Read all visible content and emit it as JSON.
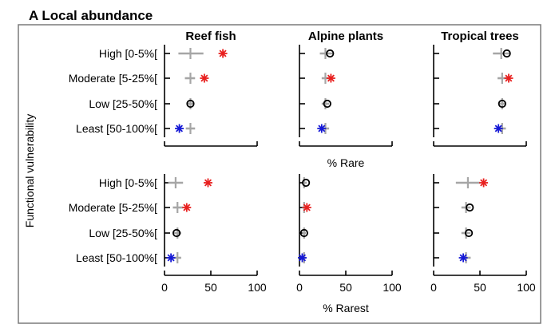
{
  "panel_title": "A Local abundance",
  "y_axis_title": "Functional vulnerability",
  "colors": {
    "frame": "#7a7a7a",
    "axis": "#000000",
    "whisker": "#a6a6a6",
    "high_marker": "#e8201f",
    "low_marker": "#1518d6",
    "neutral_marker": "#000000"
  },
  "chart_data": [
    {
      "type": "scatter",
      "row": "% Rare",
      "xlabel": "% Rare",
      "xlim": [
        0,
        100
      ],
      "xticks": [],
      "categories": [
        "High [0-5%[",
        "Moderate [5-25%[",
        "Low [25-50%[",
        "Least [50-100%["
      ],
      "panels": [
        {
          "title": "Reef fish",
          "points": [
            {
              "category": "High [0-5%[",
              "observed": 63,
              "null_mean": 28,
              "null_low": 15,
              "null_high": 42,
              "marker": "red-asterisk"
            },
            {
              "category": "Moderate [5-25%[",
              "observed": 43,
              "null_mean": 28,
              "null_low": 22,
              "null_high": 33,
              "marker": "red-asterisk"
            },
            {
              "category": "Low [25-50%[",
              "observed": 28,
              "null_mean": 28,
              "null_low": 24,
              "null_high": 31,
              "marker": "black-circle"
            },
            {
              "category": "Least [50-100%[",
              "observed": 16,
              "null_mean": 28,
              "null_low": 23,
              "null_high": 33,
              "marker": "blue-asterisk"
            }
          ]
        },
        {
          "title": "Alpine plants",
          "points": [
            {
              "category": "High [0-5%[",
              "observed": 33,
              "null_mean": 28,
              "null_low": 22,
              "null_high": 36,
              "marker": "black-circle"
            },
            {
              "category": "Moderate [5-25%[",
              "observed": 34,
              "null_mean": 28,
              "null_low": 24,
              "null_high": 32,
              "marker": "red-asterisk"
            },
            {
              "category": "Low [25-50%[",
              "observed": 30,
              "null_mean": 28,
              "null_low": 24,
              "null_high": 32,
              "marker": "black-circle"
            },
            {
              "category": "Least [50-100%[",
              "observed": 24,
              "null_mean": 28,
              "null_low": 24,
              "null_high": 32,
              "marker": "blue-asterisk"
            }
          ]
        },
        {
          "title": "Tropical trees",
          "points": [
            {
              "category": "High [0-5%[",
              "observed": 79,
              "null_mean": 73,
              "null_low": 64,
              "null_high": 82,
              "marker": "black-circle"
            },
            {
              "category": "Moderate [5-25%[",
              "observed": 81,
              "null_mean": 74,
              "null_low": 69,
              "null_high": 79,
              "marker": "red-asterisk"
            },
            {
              "category": "Low [25-50%[",
              "observed": 74,
              "null_mean": 74,
              "null_low": 71,
              "null_high": 77,
              "marker": "black-circle"
            },
            {
              "category": "Least [50-100%[",
              "observed": 70,
              "null_mean": 74,
              "null_low": 70,
              "null_high": 78,
              "marker": "blue-asterisk"
            }
          ]
        }
      ]
    },
    {
      "type": "scatter",
      "row": "% Rarest",
      "xlabel": "% Rarest",
      "xlim": [
        0,
        100
      ],
      "xticks": [
        0,
        50,
        100
      ],
      "categories": [
        "High [0-5%[",
        "Moderate [5-25%[",
        "Low [25-50%[",
        "Least [50-100%["
      ],
      "panels": [
        {
          "title": "",
          "points": [
            {
              "category": "High [0-5%[",
              "observed": 47,
              "null_mean": 12,
              "null_low": 4,
              "null_high": 20,
              "marker": "red-asterisk"
            },
            {
              "category": "Moderate [5-25%[",
              "observed": 24,
              "null_mean": 14,
              "null_low": 9,
              "null_high": 20,
              "marker": "red-asterisk"
            },
            {
              "category": "Low [25-50%[",
              "observed": 13,
              "null_mean": 14,
              "null_low": 10,
              "null_high": 18,
              "marker": "black-circle"
            },
            {
              "category": "Least [50-100%[",
              "observed": 7,
              "null_mean": 14,
              "null_low": 9,
              "null_high": 18,
              "marker": "blue-asterisk"
            }
          ]
        },
        {
          "title": "",
          "points": [
            {
              "category": "High [0-5%[",
              "observed": 7,
              "null_mean": 5,
              "null_low": 3,
              "null_high": 8,
              "marker": "black-circle"
            },
            {
              "category": "Moderate [5-25%[",
              "observed": 8,
              "null_mean": 5,
              "null_low": 3,
              "null_high": 7,
              "marker": "red-asterisk"
            },
            {
              "category": "Low [25-50%[",
              "observed": 5,
              "null_mean": 5,
              "null_low": 3,
              "null_high": 7,
              "marker": "black-circle"
            },
            {
              "category": "Least [50-100%[",
              "observed": 3,
              "null_mean": 5,
              "null_low": 3,
              "null_high": 7,
              "marker": "blue-asterisk"
            }
          ]
        },
        {
          "title": "",
          "points": [
            {
              "category": "High [0-5%[",
              "observed": 54,
              "null_mean": 37,
              "null_low": 24,
              "null_high": 50,
              "marker": "red-asterisk"
            },
            {
              "category": "Moderate [5-25%[",
              "observed": 39,
              "null_mean": 35,
              "null_low": 30,
              "null_high": 40,
              "marker": "black-circle"
            },
            {
              "category": "Low [25-50%[",
              "observed": 38,
              "null_mean": 35,
              "null_low": 30,
              "null_high": 40,
              "marker": "black-circle"
            },
            {
              "category": "Least [50-100%[",
              "observed": 32,
              "null_mean": 35,
              "null_low": 30,
              "null_high": 40,
              "marker": "blue-asterisk"
            }
          ]
        }
      ]
    }
  ]
}
